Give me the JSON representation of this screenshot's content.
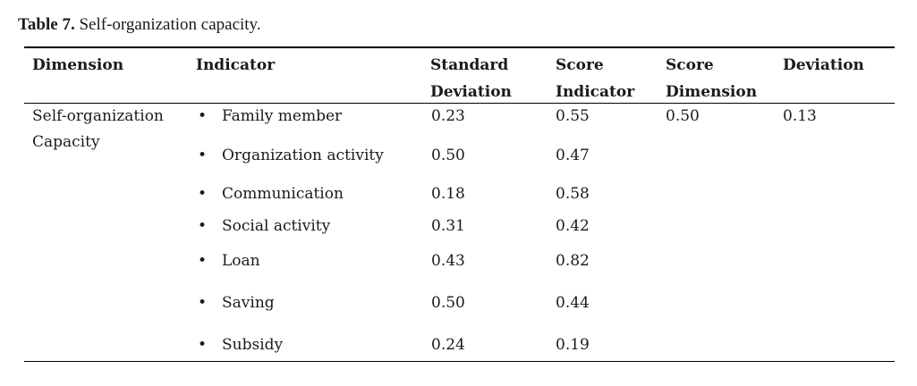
{
  "table": {
    "caption_label": "Table 7.",
    "caption_text": " Self-organization capacity.",
    "headers": {
      "dimension": "Dimension",
      "indicator": "Indicator",
      "std_dev_1": "Standard",
      "std_dev_2": "Deviation",
      "score_ind_1": "Score",
      "score_ind_2": "Indicator",
      "score_dim_1": "Score",
      "score_dim_2": "Dimension",
      "deviation": "Deviation"
    },
    "dimension_1": "Self-organization",
    "dimension_2": "Capacity",
    "score_dimension": "0.50",
    "deviation": "0.13",
    "bullet_glyph": "•",
    "rows": [
      {
        "indicator": "Family member",
        "std_dev": "0.23",
        "score": "0.55"
      },
      {
        "indicator": "Organization activity",
        "std_dev": "0.50",
        "score": "0.47"
      },
      {
        "indicator": "Communication",
        "std_dev": "0.18",
        "score": "0.58"
      },
      {
        "indicator": "Social activity",
        "std_dev": "0.31",
        "score": "0.42"
      },
      {
        "indicator": "Loan",
        "std_dev": "0.43",
        "score": "0.82"
      },
      {
        "indicator": "Saving",
        "std_dev": "0.50",
        "score": "0.44"
      },
      {
        "indicator": "Subsidy",
        "std_dev": "0.24",
        "score": "0.19"
      }
    ]
  }
}
